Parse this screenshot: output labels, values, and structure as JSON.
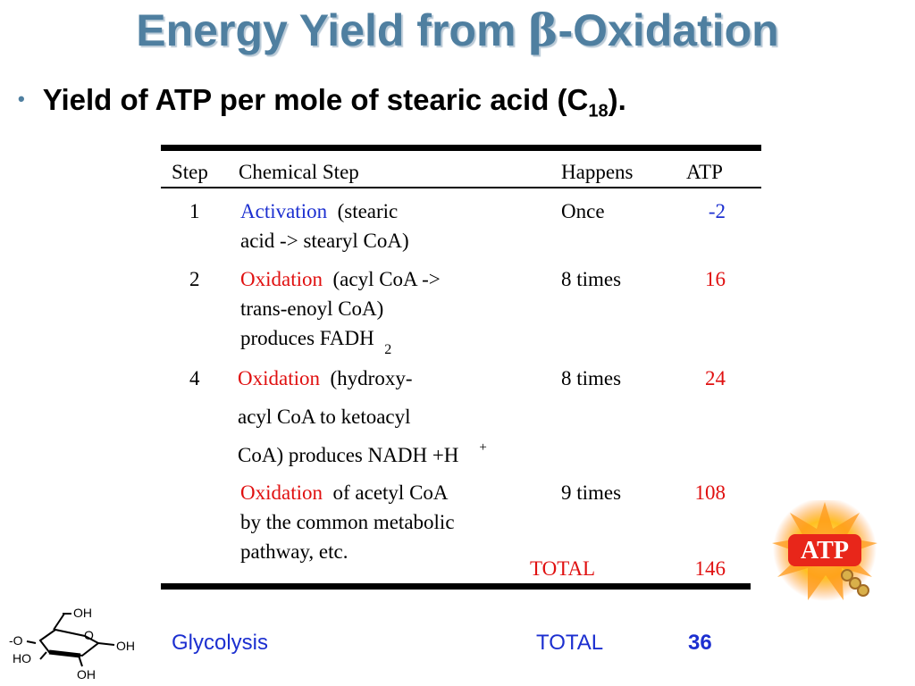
{
  "slide": {
    "title_part1": "Energy Yield from ",
    "title_greek": "β",
    "title_part2": "-Oxidation",
    "bullet_text": "Yield of ATP per mole of stearic acid (C",
    "bullet_sub": "18",
    "bullet_end": ")."
  },
  "table": {
    "headers": {
      "step": "Step",
      "chemical": "Chemical Step",
      "happens": "Happens",
      "atp": "ATP"
    },
    "rows": [
      {
        "step": "1",
        "keyword": "Activation",
        "desc1": "(stearic",
        "desc2": "acid -> stearyl CoA)",
        "happens": "Once",
        "atp": "-2"
      },
      {
        "step": "2",
        "keyword": "Oxidation",
        "desc1": "(acyl CoA ->",
        "desc2": "trans-enoyl CoA)",
        "desc3": "produces FADH",
        "sub": "2",
        "happens": "8 times",
        "atp": "16"
      },
      {
        "step": "4",
        "keyword": "Oxidation",
        "desc1": "(hydroxy-",
        "desc2": "acyl CoA to ketoacyl",
        "desc3": "CoA) produces NADH +H",
        "sup": "+",
        "happens": "8 times",
        "atp": "24"
      },
      {
        "keyword": "Oxidation",
        "desc1": "of acetyl CoA",
        "desc2": "by the common metabolic",
        "desc3": "pathway, etc.",
        "happens": "9 times",
        "atp": "108"
      }
    ],
    "total_label": "TOTAL",
    "total_value": "146"
  },
  "footer": {
    "glycolysis": "Glycolysis",
    "total_label": "TOTAL",
    "total_value": "36"
  },
  "logo": {
    "text": "ATP"
  },
  "glucose": {
    "oh_top": "OH",
    "o_ring": "O",
    "oh_right": "OH",
    "o_left": "-O",
    "ho": "HO",
    "oh_bottom": "OH"
  },
  "colors": {
    "title": "#4f7fa0",
    "blue": "#1c2fd0",
    "red": "#e01010"
  }
}
